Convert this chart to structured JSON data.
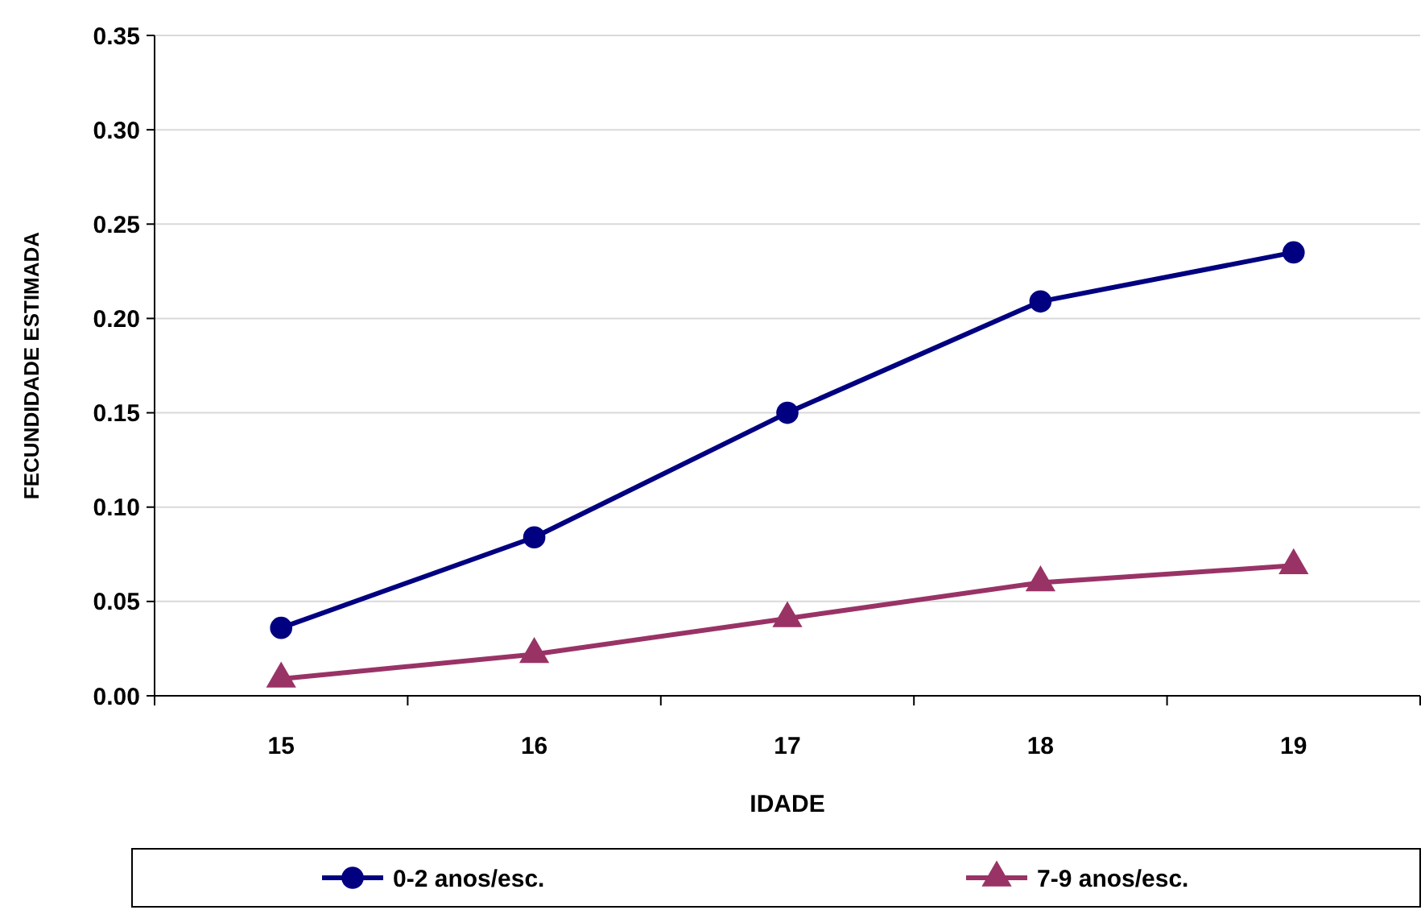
{
  "chart_data": {
    "type": "line",
    "xlabel": "IDADE",
    "ylabel": "FECUNDIDADE ESTIMADA",
    "categories": [
      "15",
      "16",
      "17",
      "18",
      "19"
    ],
    "series": [
      {
        "name": "0-2 anos/esc.",
        "color": "#000080",
        "marker": "circle",
        "values": [
          0.036,
          0.084,
          0.15,
          0.209,
          0.235
        ]
      },
      {
        "name": "7-9 anos/esc.",
        "color": "#993366",
        "marker": "triangle",
        "values": [
          0.009,
          0.022,
          0.041,
          0.06,
          0.069
        ]
      }
    ],
    "ylim": [
      0,
      0.35
    ],
    "yticks": [
      {
        "value": 0,
        "label": "0.00"
      },
      {
        "value": 0.05,
        "label": "0.05"
      },
      {
        "value": 0.1,
        "label": "0.10"
      },
      {
        "value": 0.15,
        "label": "0.15"
      },
      {
        "value": 0.2,
        "label": "0.20"
      },
      {
        "value": 0.25,
        "label": "0.25"
      },
      {
        "value": 0.3,
        "label": "0.30"
      },
      {
        "value": 0.35,
        "label": "0.35"
      }
    ],
    "grid": "y",
    "legend": "bottom"
  }
}
